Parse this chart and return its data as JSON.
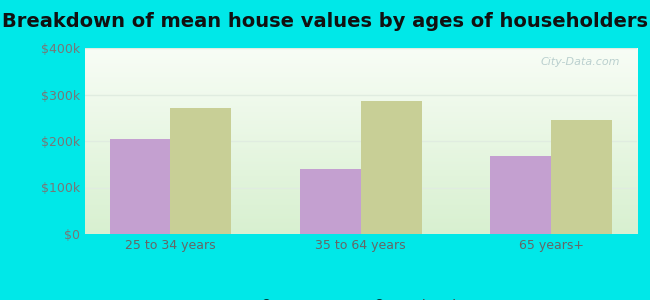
{
  "title": "Breakdown of mean house values by ages of householders",
  "categories": [
    "25 to 34 years",
    "35 to 64 years",
    "65 years+"
  ],
  "series": {
    "Geneva": [
      205000,
      140000,
      168000
    ],
    "Nebraska": [
      270000,
      285000,
      245000
    ]
  },
  "bar_colors": {
    "Geneva": "#c4a0d0",
    "Nebraska": "#c8cf96"
  },
  "ylim": [
    0,
    400000
  ],
  "yticks": [
    0,
    100000,
    200000,
    300000,
    400000
  ],
  "ytick_labels": [
    "$0",
    "$100k",
    "$200k",
    "$300k",
    "$400k"
  ],
  "background_outer": "#00e8e8",
  "background_inner_top": "#f8fdf6",
  "background_inner_bottom": "#d8f0d0",
  "grid_color": "#e0ece0",
  "title_fontsize": 14,
  "tick_fontsize": 9,
  "legend_fontsize": 10,
  "bar_width": 0.32,
  "watermark": "City-Data.com"
}
